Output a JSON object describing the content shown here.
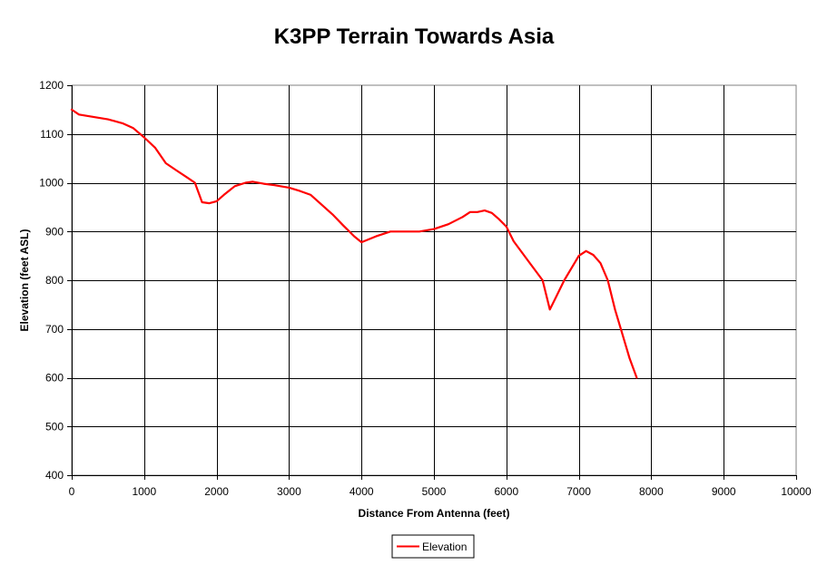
{
  "chart_data": {
    "type": "line",
    "title": "K3PP Terrain Towards Asia",
    "xlabel": "Distance From Antenna (feet)",
    "ylabel": "Elevation (feet ASL)",
    "xlim": [
      0,
      10000
    ],
    "ylim": [
      400,
      1200
    ],
    "x_ticks": [
      0,
      1000,
      2000,
      3000,
      4000,
      5000,
      6000,
      7000,
      8000,
      9000,
      10000
    ],
    "y_ticks": [
      400,
      500,
      600,
      700,
      800,
      900,
      1000,
      1100,
      1200
    ],
    "grid": true,
    "legend_position": "bottom-center",
    "series": [
      {
        "name": "Elevation",
        "color": "#ff0000",
        "x": [
          0,
          100,
          300,
          500,
          700,
          850,
          1000,
          1150,
          1300,
          1450,
          1600,
          1700,
          1800,
          1900,
          2000,
          2100,
          2250,
          2400,
          2500,
          2650,
          2800,
          3000,
          3150,
          3300,
          3450,
          3600,
          3750,
          3900,
          4000,
          4200,
          4400,
          4600,
          4800,
          5000,
          5200,
          5400,
          5500,
          5600,
          5700,
          5800,
          5900,
          6000,
          6100,
          6300,
          6500,
          6600,
          6700,
          6800,
          6900,
          7000,
          7100,
          7200,
          7300,
          7400,
          7500,
          7600,
          7700,
          7800
        ],
        "y": [
          1150,
          1140,
          1135,
          1130,
          1122,
          1112,
          1093,
          1072,
          1040,
          1025,
          1010,
          1000,
          960,
          958,
          962,
          975,
          993,
          1000,
          1002,
          998,
          995,
          990,
          983,
          975,
          955,
          935,
          912,
          890,
          878,
          890,
          900,
          900,
          900,
          905,
          915,
          930,
          940,
          940,
          943,
          938,
          925,
          910,
          880,
          840,
          800,
          740,
          770,
          800,
          825,
          850,
          860,
          852,
          835,
          800,
          740,
          690,
          640,
          600
        ]
      }
    ]
  }
}
